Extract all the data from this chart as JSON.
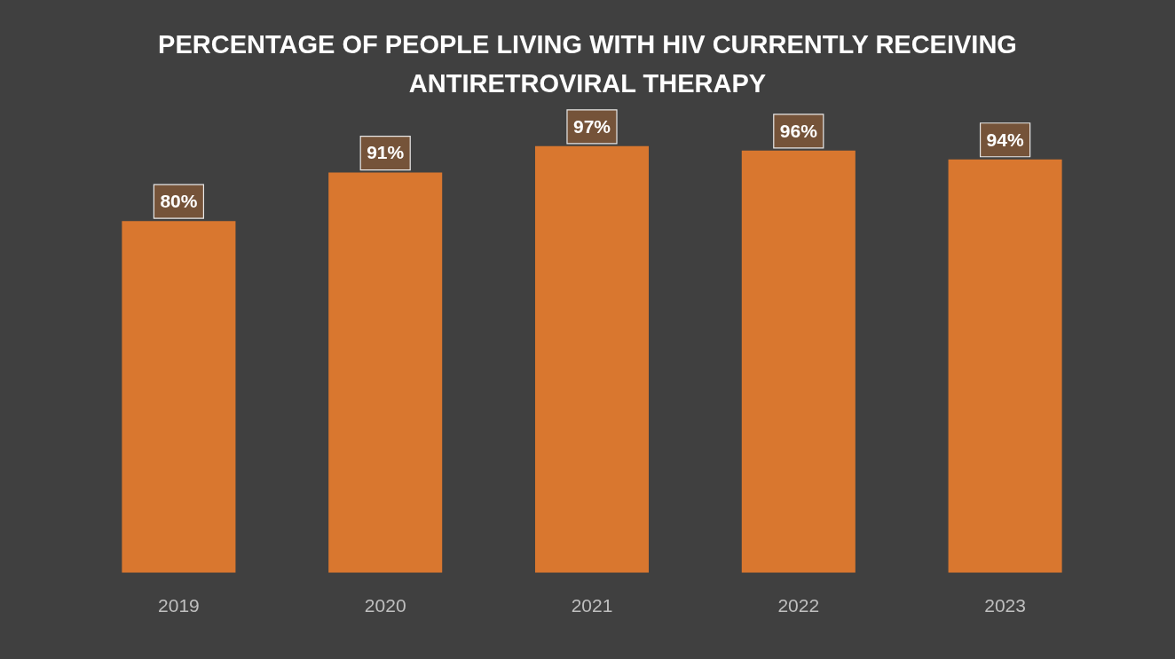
{
  "chart_data": {
    "type": "bar",
    "title": "PERCENTAGE OF PEOPLE LIVING WITH HIV CURRENTLY RECEIVING ANTIRETROVIRAL THERAPY",
    "categories": [
      "2019",
      "2020",
      "2021",
      "2022",
      "2023"
    ],
    "values": [
      80,
      91,
      97,
      96,
      94
    ],
    "value_labels": [
      "80%",
      "91%",
      "97%",
      "96%",
      "94%"
    ],
    "color": "#d9772f",
    "grid": false,
    "legend": false,
    "tick_labels": "x"
  }
}
